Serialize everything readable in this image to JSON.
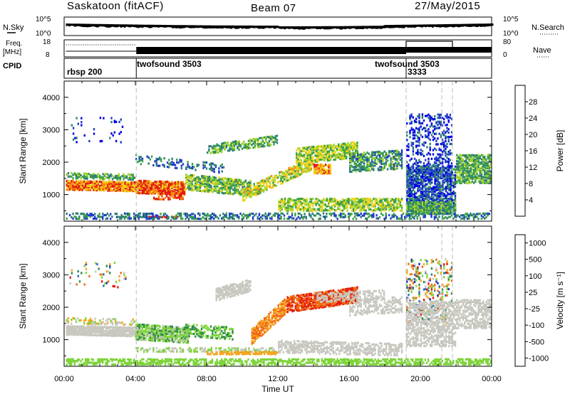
{
  "header": {
    "station": "Saskatoon (fitACF)",
    "beam": "Beam 07",
    "date": "27/May/2015"
  },
  "strips": {
    "nsky_label": "N.Sky",
    "nsearch_label": "N.Search",
    "freq_label_1": "Freq.",
    "freq_label_2": "[MHz]",
    "nave_label": "Nave",
    "cpid_label": "CPID",
    "nsky_ticks_left": [
      "10^5",
      "10^0"
    ],
    "nsky_ticks_right": [
      "10^5",
      "10^0"
    ],
    "freq_ticks": [
      "18",
      "8"
    ],
    "nave_ticks": [
      "80",
      "0"
    ],
    "cpid_entries": [
      "rbsp 200",
      "twofsound 3503",
      "twofsound 3503",
      "3333"
    ]
  },
  "chart_data": [
    {
      "type": "heatmap",
      "panel": "power",
      "ylabel": "Slant Range [km]",
      "xlabel": "",
      "xlim_hours": [
        0,
        24
      ],
      "ylim": [
        180,
        4500
      ],
      "yticks": [
        1000,
        2000,
        3000,
        4000
      ],
      "colorbar_label": "Power [dB]",
      "colorbar_ticks": [
        4,
        8,
        12,
        16,
        20,
        24,
        28
      ],
      "colorbar_colors": [
        "#0000e6",
        "#1f3dc8",
        "#2e7d78",
        "#3aa04a",
        "#9fd22a",
        "#f2d21a",
        "#f58a12",
        "#e21b10"
      ]
    },
    {
      "type": "heatmap",
      "panel": "velocity",
      "ylabel": "Slant Range [km]",
      "xlabel": "Time UT",
      "xlim_hours": [
        0,
        24
      ],
      "ylim": [
        180,
        4500
      ],
      "yticks": [
        1000,
        2000,
        3000,
        4000
      ],
      "xticks": [
        "00:00",
        "04:00",
        "08:00",
        "12:00",
        "16:00",
        "20:00",
        "00:00"
      ],
      "colorbar_label": "Velocity [m s⁻¹]",
      "colorbar_ticks": [
        "1000",
        "500",
        "100",
        "25",
        "-25",
        "-100",
        "-500",
        "-1000"
      ],
      "colorbar_colors": [
        "#1d2bb5",
        "#2f6fb8",
        "#2e8a4a",
        "#7ed43a",
        "#c8c8c0",
        "#f5a520",
        "#f06a10",
        "#e21b10"
      ]
    }
  ]
}
